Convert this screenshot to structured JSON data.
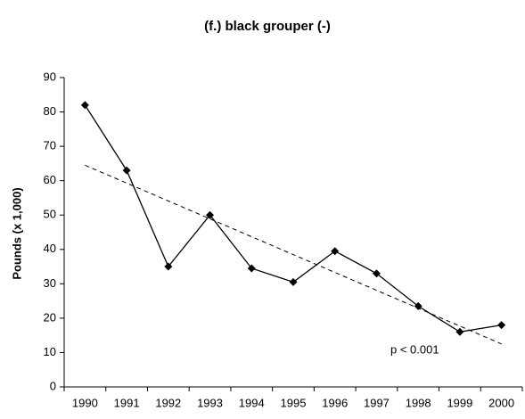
{
  "chart_data": {
    "type": "line",
    "title": "(f.) black grouper (-)",
    "y_label": "Pounds (x 1,000)",
    "categories": [
      "1990",
      "1991",
      "1992",
      "1993",
      "1994",
      "1995",
      "1996",
      "1997",
      "1998",
      "1999",
      "2000"
    ],
    "series": [
      {
        "color": "#000000",
        "marker": "diamond",
        "values": [
          82,
          63,
          35,
          50,
          34.5,
          30.5,
          39.5,
          33,
          23.5,
          16,
          18
        ]
      }
    ],
    "trend_line": {
      "from": 64.5,
      "to": 12.5,
      "style": "dashed",
      "color": "#000000"
    },
    "annotation": "p < 0.001",
    "ylim": [
      0,
      90
    ],
    "yticks": [
      0,
      10,
      20,
      30,
      40,
      50,
      60,
      70,
      80,
      90
    ],
    "grid": false
  }
}
